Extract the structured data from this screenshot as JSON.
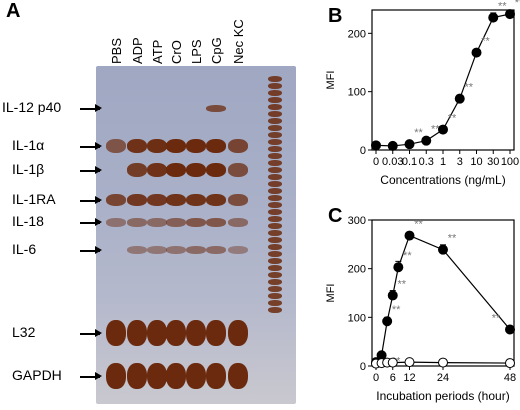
{
  "panel_a": {
    "letter": "A",
    "lanes": [
      "PBS",
      "ADP",
      "ATP",
      "CrO",
      "LPS",
      "CpG",
      "Nec KC"
    ],
    "bands": [
      "IL-12 p40",
      "IL-1α",
      "IL-1β",
      "IL-1RA",
      "IL-18",
      "IL-6",
      "L32",
      "GAPDH"
    ]
  },
  "chart_data": [
    {
      "id": "B",
      "type": "line",
      "letter": "B",
      "xlabel": "Concentrations (ng/mL)",
      "ylabel": "MFI",
      "categories": [
        "0",
        "0.03",
        "0.1",
        "0.3",
        "1",
        "3",
        "10",
        "30",
        "100"
      ],
      "ylim": [
        0,
        240
      ],
      "yticks": [
        0,
        100,
        200
      ],
      "series": [
        {
          "values": [
            8,
            7,
            10,
            16,
            35,
            88,
            167,
            227,
            233
          ],
          "errors": [
            3,
            2,
            2,
            3,
            4,
            6,
            5,
            8,
            5
          ],
          "significance": [
            "",
            "",
            "**",
            "**",
            "**",
            "**",
            "**",
            "**",
            "**"
          ]
        }
      ]
    },
    {
      "id": "C",
      "type": "line",
      "letter": "C",
      "xlabel": "Incubation periods (hour)",
      "ylabel": "MFI",
      "xticks": [
        0,
        6,
        12,
        24,
        48
      ],
      "xlim": [
        0,
        48
      ],
      "ylim": [
        0,
        300
      ],
      "yticks": [
        0,
        100,
        200,
        300
      ],
      "series": [
        {
          "marker": "filled",
          "x": [
            0,
            2,
            4,
            6,
            8,
            12,
            24,
            48
          ],
          "values": [
            8,
            22,
            92,
            145,
            203,
            268,
            239,
            75
          ],
          "errors": [
            2,
            4,
            8,
            10,
            12,
            6,
            10,
            6
          ],
          "significance": [
            "",
            "",
            "**",
            "**",
            "**",
            "**",
            "**",
            "**"
          ]
        },
        {
          "marker": "open",
          "x": [
            0,
            2,
            4,
            6,
            12,
            24,
            48
          ],
          "values": [
            5,
            6,
            7,
            7,
            8,
            7,
            6
          ],
          "errors": [
            1,
            1,
            1,
            1,
            1,
            1,
            1
          ],
          "significance": [
            "",
            "",
            "**",
            "",
            "",
            "",
            ""
          ]
        }
      ]
    }
  ]
}
